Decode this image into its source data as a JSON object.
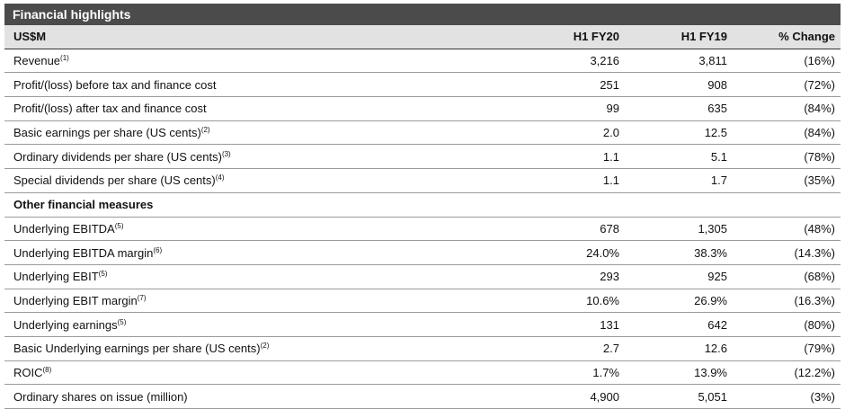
{
  "title": "Financial highlights",
  "header": [
    "US$M",
    "H1 FY20",
    "H1 FY19",
    "% Change"
  ],
  "rows": [
    {
      "label": "Revenue",
      "note": "(1)",
      "h1fy20": "3,216",
      "h1fy19": "3,811",
      "change": "(16%)"
    },
    {
      "label": "Profit/(loss) before tax and finance cost",
      "note": "",
      "h1fy20": "251",
      "h1fy19": "908",
      "change": "(72%)"
    },
    {
      "label": "Profit/(loss) after tax and finance cost",
      "note": "",
      "h1fy20": "99",
      "h1fy19": "635",
      "change": "(84%)"
    },
    {
      "label": "Basic earnings per share (US cents)",
      "note": "(2)",
      "h1fy20": "2.0",
      "h1fy19": "12.5",
      "change": "(84%)"
    },
    {
      "label": "Ordinary dividends per share (US cents)",
      "note": "(3)",
      "h1fy20": "1.1",
      "h1fy19": "5.1",
      "change": "(78%)"
    },
    {
      "label": "Special dividends per share (US cents)",
      "note": "(4)",
      "h1fy20": "1.1",
      "h1fy19": "1.7",
      "change": "(35%)"
    }
  ],
  "section_label": "Other financial measures",
  "other_rows": [
    {
      "label": "Underlying EBITDA",
      "note": "(5)",
      "h1fy20": "678",
      "h1fy19": "1,305",
      "change": "(48%)"
    },
    {
      "label": "Underlying EBITDA margin",
      "note": "(6)",
      "h1fy20": "24.0%",
      "h1fy19": "38.3%",
      "change": "(14.3%)"
    },
    {
      "label": "Underlying EBIT",
      "note": "(5)",
      "h1fy20": "293",
      "h1fy19": "925",
      "change": "(68%)"
    },
    {
      "label": "Underlying EBIT margin",
      "note": "(7)",
      "h1fy20": "10.6%",
      "h1fy19": "26.9%",
      "change": "(16.3%)"
    },
    {
      "label": "Underlying earnings",
      "note": "(5)",
      "h1fy20": "131",
      "h1fy19": "642",
      "change": "(80%)"
    },
    {
      "label": "Basic Underlying earnings per share (US cents)",
      "note": "(2)",
      "h1fy20": "2.7",
      "h1fy19": "12.6",
      "change": "(79%)"
    },
    {
      "label": "ROIC",
      "note": "(8)",
      "h1fy20": "1.7%",
      "h1fy19": "13.9%",
      "change": "(12.2%)"
    },
    {
      "label": "Ordinary shares on issue (million)",
      "note": "",
      "h1fy20": "4,900",
      "h1fy19": "5,051",
      "change": "(3%)"
    }
  ]
}
